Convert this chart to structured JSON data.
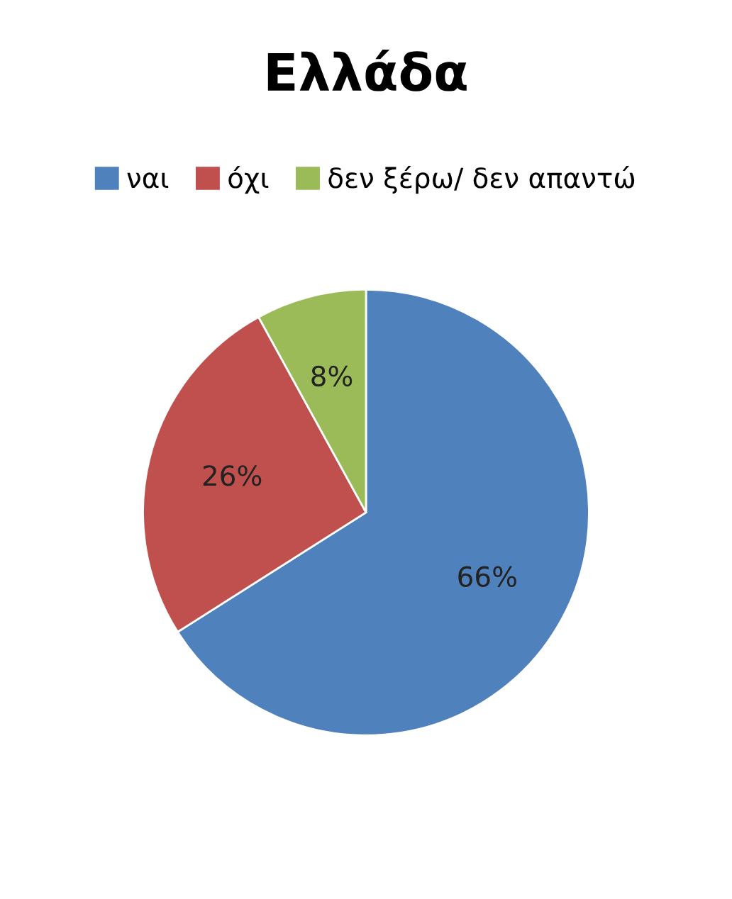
{
  "chart_data": {
    "type": "pie",
    "title": "Ελλάδα",
    "categories": [
      "ναι",
      "όχι",
      "δεν ξέρω/ δεν απαντώ"
    ],
    "values": [
      66,
      26,
      8
    ],
    "colors": [
      "#4f81bd",
      "#c0504d",
      "#9bbb59"
    ],
    "value_labels": [
      "66%",
      "26%",
      "8%"
    ],
    "legend": "top"
  }
}
